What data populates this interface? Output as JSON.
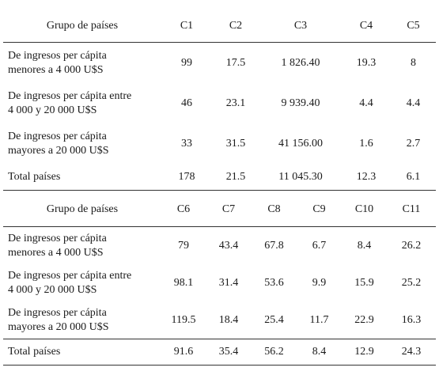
{
  "table1": {
    "headers": [
      "Grupo de países",
      "C1",
      "C2",
      "C3",
      "C4",
      "C5"
    ],
    "rows": [
      [
        "De ingresos per cápita\nmenores a 4 000 U$S",
        "99",
        "17.5",
        "1 826.40",
        "19.3",
        "8"
      ],
      [
        "De ingresos per cápita entre\n4 000 y 20 000 U$S",
        "46",
        "23.1",
        "9 939.40",
        "4.4",
        "4.4"
      ],
      [
        "De ingresos per cápita\nmayores a 20 000 U$S",
        "33",
        "31.5",
        "41 156.00",
        "1.6",
        "2.7"
      ],
      [
        "Total países",
        "178",
        "21.5",
        "11 045.30",
        "12.3",
        "6.1"
      ]
    ]
  },
  "table2": {
    "headers": [
      "Grupo de países",
      "C6",
      "C7",
      "C8",
      "C9",
      "C10",
      "C11"
    ],
    "rows": [
      [
        "De ingresos per cápita\nmenores a 4 000 U$S",
        "79",
        "43.4",
        "67.8",
        "6.7",
        "8.4",
        "26.2"
      ],
      [
        "De ingresos per cápita entre\n4 000 y 20 000 U$S",
        "98.1",
        "31.4",
        "53.6",
        "9.9",
        "15.9",
        "25.2"
      ],
      [
        "De ingresos per cápita\nmayores a 20 000 U$S",
        "119.5",
        "18.4",
        "25.4",
        "11.7",
        "22.9",
        "16.3"
      ],
      [
        "Total países",
        "91.6",
        "35.4",
        "56.2",
        "8.4",
        "12.9",
        "24.3"
      ]
    ]
  }
}
